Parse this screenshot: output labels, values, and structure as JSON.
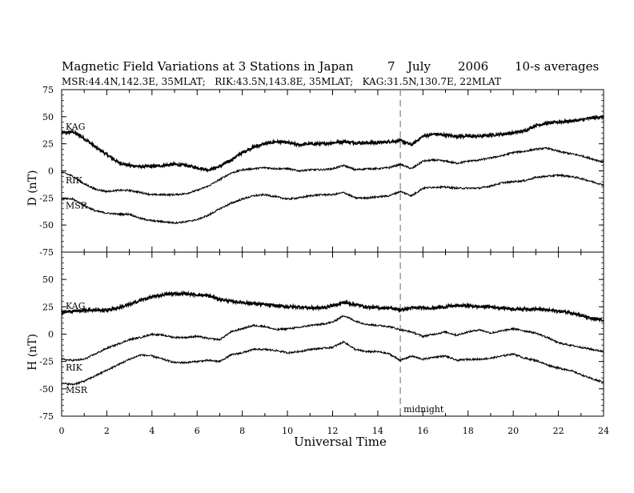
{
  "chart_data": [
    {
      "panel": "D",
      "type": "line",
      "title": "Magnetic Field Variations at 3 Stations in Japan",
      "date_parts": [
        "7",
        "July",
        "2006"
      ],
      "averaging": "10-s averages",
      "subtitle": "MSR:44.4N,142.3E, 35MLAT;   RIK:43.5N,143.8E, 35MLAT;   KAG:31.5N,130.7E, 22MLAT",
      "ylabel": "D (nT)",
      "xlabel": "",
      "xlim": [
        0,
        24
      ],
      "ylim": [
        -75,
        75
      ],
      "yticks": [
        -75,
        -50,
        -25,
        0,
        25,
        50,
        75
      ],
      "series": [
        {
          "name": "KAG",
          "x": [
            0,
            0.5,
            1,
            1.5,
            2,
            2.5,
            3,
            3.5,
            4,
            4.5,
            5,
            5.5,
            6,
            6.5,
            7,
            7.5,
            8,
            8.5,
            9,
            9.5,
            10,
            10.5,
            11,
            11.5,
            12,
            12.5,
            13,
            13.5,
            14,
            14.5,
            15,
            15.5,
            16,
            16.5,
            17,
            17.5,
            18,
            18.5,
            19,
            19.5,
            20,
            20.5,
            21,
            21.5,
            22,
            22.5,
            23,
            23.5,
            24
          ],
          "values": [
            35,
            36,
            30,
            22,
            15,
            8,
            5,
            4,
            4,
            5,
            6,
            5,
            3,
            1,
            4,
            10,
            17,
            22,
            25,
            27,
            26,
            24,
            25,
            25,
            26,
            27,
            26,
            26,
            26,
            27,
            28,
            24,
            32,
            34,
            33,
            32,
            32,
            32,
            33,
            34,
            35,
            37,
            42,
            44,
            45,
            46,
            47,
            49,
            50
          ]
        },
        {
          "name": "RIK",
          "x": [
            0,
            0.5,
            1,
            1.5,
            2,
            2.5,
            3,
            3.5,
            4,
            4.5,
            5,
            5.5,
            6,
            6.5,
            7,
            7.5,
            8,
            8.5,
            9,
            9.5,
            10,
            10.5,
            11,
            11.5,
            12,
            12.5,
            13,
            13.5,
            14,
            14.5,
            15,
            15.5,
            16,
            16.5,
            17,
            17.5,
            18,
            18.5,
            19,
            19.5,
            20,
            20.5,
            21,
            21.5,
            22,
            22.5,
            23,
            23.5,
            24
          ],
          "values": [
            -1,
            -5,
            -12,
            -17,
            -19,
            -18,
            -18,
            -20,
            -22,
            -22,
            -22,
            -21,
            -18,
            -14,
            -8,
            -2,
            1,
            2,
            3,
            2,
            2,
            0,
            1,
            1,
            2,
            5,
            1,
            2,
            2,
            3,
            6,
            2,
            9,
            10,
            9,
            7,
            9,
            10,
            12,
            14,
            17,
            18,
            20,
            21,
            18,
            16,
            14,
            11,
            8
          ]
        },
        {
          "name": "MSR",
          "x": [
            0,
            0.5,
            1,
            1.5,
            2,
            2.5,
            3,
            3.5,
            4,
            4.5,
            5,
            5.5,
            6,
            6.5,
            7,
            7.5,
            8,
            8.5,
            9,
            9.5,
            10,
            10.5,
            11,
            11.5,
            12,
            12.5,
            13,
            13.5,
            14,
            14.5,
            15,
            15.5,
            16,
            16.5,
            17,
            17.5,
            18,
            18.5,
            19,
            19.5,
            20,
            20.5,
            21,
            21.5,
            22,
            22.5,
            23,
            23.5,
            24
          ],
          "values": [
            -26,
            -26,
            -32,
            -37,
            -39,
            -40,
            -40,
            -44,
            -46,
            -47,
            -48,
            -47,
            -45,
            -41,
            -35,
            -30,
            -26,
            -23,
            -22,
            -24,
            -26,
            -25,
            -23,
            -22,
            -22,
            -20,
            -25,
            -25,
            -24,
            -23,
            -19,
            -23,
            -16,
            -15,
            -15,
            -16,
            -16,
            -16,
            -14,
            -11,
            -10,
            -9,
            -6,
            -5,
            -4,
            -5,
            -7,
            -10,
            -13
          ]
        }
      ]
    },
    {
      "panel": "H",
      "type": "line",
      "ylabel": "H (nT)",
      "xlabel": "Universal Time",
      "xlim": [
        0,
        24
      ],
      "ylim": [
        -75,
        75
      ],
      "yticks": [
        -75,
        -50,
        -25,
        0,
        25,
        50
      ],
      "xticks": [
        0,
        2,
        4,
        6,
        8,
        10,
        12,
        14,
        16,
        18,
        20,
        22,
        24
      ],
      "annotation": {
        "text": "midnight",
        "x": 15
      },
      "series": [
        {
          "name": "KAG",
          "x": [
            0,
            0.5,
            1,
            1.5,
            2,
            2.5,
            3,
            3.5,
            4,
            4.5,
            5,
            5.5,
            6,
            6.5,
            7,
            7.5,
            8,
            8.5,
            9,
            9.5,
            10,
            10.5,
            11,
            11.5,
            12,
            12.5,
            13,
            13.5,
            14,
            14.5,
            15,
            15.5,
            16,
            16.5,
            17,
            17.5,
            18,
            18.5,
            19,
            19.5,
            20,
            20.5,
            21,
            21.5,
            22,
            22.5,
            23,
            23.5,
            24
          ],
          "values": [
            20,
            21,
            22,
            22,
            22,
            24,
            27,
            31,
            34,
            36,
            37,
            37,
            36,
            35,
            32,
            30,
            29,
            28,
            27,
            26,
            25,
            25,
            24,
            24,
            26,
            29,
            27,
            25,
            24,
            24,
            22,
            24,
            24,
            24,
            25,
            26,
            26,
            25,
            25,
            24,
            23,
            23,
            23,
            22,
            21,
            20,
            17,
            14,
            13
          ]
        },
        {
          "name": "RIK",
          "x": [
            0,
            0.5,
            1,
            1.5,
            2,
            2.5,
            3,
            3.5,
            4,
            4.5,
            5,
            5.5,
            6,
            6.5,
            7,
            7.5,
            8,
            8.5,
            9,
            9.5,
            10,
            10.5,
            11,
            11.5,
            12,
            12.5,
            13,
            13.5,
            14,
            14.5,
            15,
            15.5,
            16,
            16.5,
            17,
            17.5,
            18,
            18.5,
            19,
            19.5,
            20,
            20.5,
            21,
            21.5,
            22,
            22.5,
            23,
            23.5,
            24
          ],
          "values": [
            -23,
            -24,
            -23,
            -18,
            -13,
            -9,
            -5,
            -3,
            0,
            -1,
            -3,
            -3,
            -2,
            -4,
            -5,
            2,
            5,
            8,
            7,
            4,
            5,
            6,
            8,
            9,
            11,
            17,
            12,
            9,
            8,
            7,
            4,
            2,
            -2,
            0,
            2,
            -1,
            2,
            4,
            1,
            3,
            5,
            3,
            1,
            -3,
            -8,
            -10,
            -12,
            -14,
            -16
          ]
        },
        {
          "name": "MSR",
          "x": [
            0,
            0.5,
            1,
            1.5,
            2,
            2.5,
            3,
            3.5,
            4,
            4.5,
            5,
            5.5,
            6,
            6.5,
            7,
            7.5,
            8,
            8.5,
            9,
            9.5,
            10,
            10.5,
            11,
            11.5,
            12,
            12.5,
            13,
            13.5,
            14,
            14.5,
            15,
            15.5,
            16,
            16.5,
            17,
            17.5,
            18,
            18.5,
            19,
            19.5,
            20,
            20.5,
            21,
            21.5,
            22,
            22.5,
            23,
            23.5,
            24
          ],
          "values": [
            -45,
            -46,
            -43,
            -38,
            -33,
            -28,
            -23,
            -19,
            -20,
            -23,
            -26,
            -26,
            -25,
            -24,
            -25,
            -19,
            -17,
            -14,
            -14,
            -15,
            -17,
            -16,
            -14,
            -13,
            -12,
            -7,
            -14,
            -16,
            -16,
            -18,
            -24,
            -20,
            -23,
            -21,
            -20,
            -24,
            -23,
            -23,
            -22,
            -20,
            -18,
            -22,
            -24,
            -28,
            -31,
            -33,
            -37,
            -41,
            -44
          ]
        }
      ]
    }
  ]
}
